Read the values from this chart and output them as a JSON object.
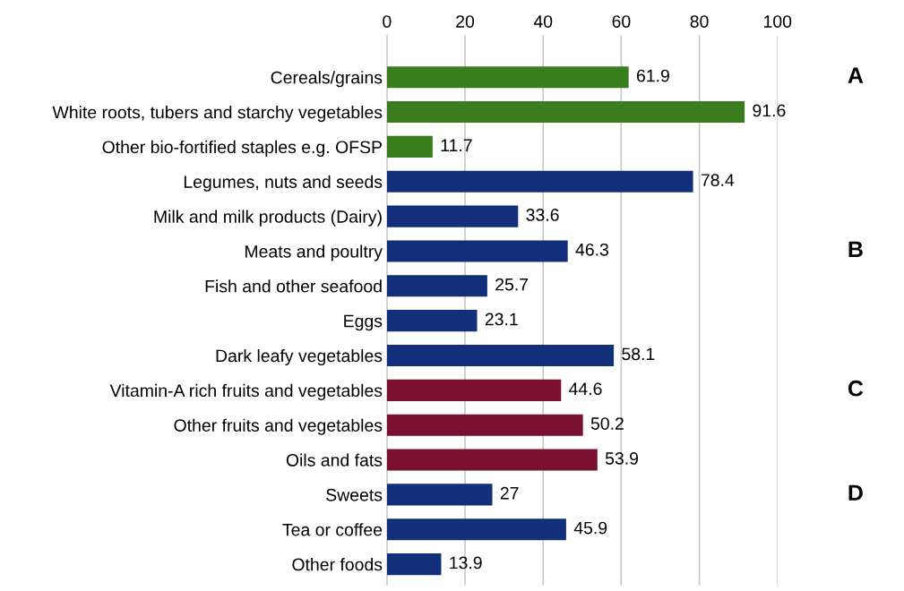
{
  "chart_data": {
    "type": "bar",
    "orientation": "horizontal",
    "categories": [
      "Cereals/grains",
      "White roots, tubers and starchy vegetables",
      "Other bio-fortified staples e.g. OFSP",
      "Legumes, nuts and seeds",
      "Milk and milk products (Dairy)",
      "Meats and poultry",
      "Fish and other seafood",
      "Eggs",
      "Dark leafy vegetables",
      "Vitamin-A rich fruits and vegetables",
      "Other fruits and vegetables",
      "Oils and fats",
      "Sweets",
      "Tea or coffee",
      "Other foods"
    ],
    "values": [
      61.9,
      91.6,
      11.7,
      78.4,
      33.6,
      46.3,
      25.7,
      23.1,
      58.1,
      44.6,
      50.2,
      53.9,
      27,
      45.9,
      13.9
    ],
    "colors": [
      "#3a7d1f",
      "#3a7d1f",
      "#3a7d1f",
      "#12307a",
      "#12307a",
      "#12307a",
      "#12307a",
      "#12307a",
      "#12307a",
      "#7a1030",
      "#7a1030",
      "#7a1030",
      "#12307a",
      "#12307a",
      "#12307a"
    ],
    "xlim": [
      0,
      100
    ],
    "xticks": [
      0,
      20,
      40,
      60,
      80,
      100
    ],
    "grid": "x",
    "data_labels": true,
    "annotations": [
      "A",
      "B",
      "C",
      "D"
    ]
  }
}
